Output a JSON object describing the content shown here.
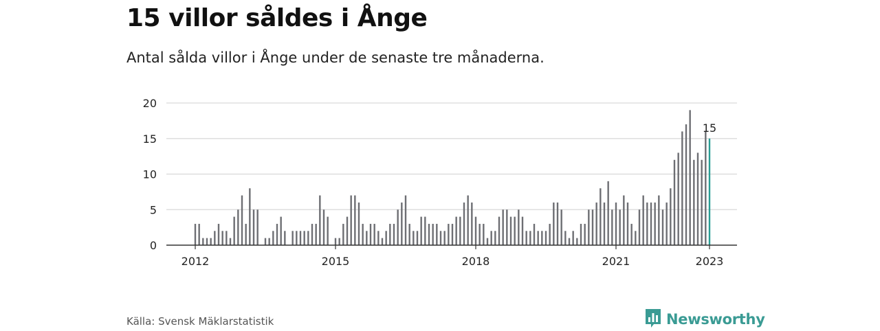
{
  "header": {
    "title": "15 villor såldes i Ånge",
    "subtitle": "Antal sålda villor i Ånge under de senaste tre månaderna."
  },
  "footer": {
    "source": "Källa: Svensk Mäklarstatistik",
    "brand": "Newsworthy",
    "brand_icon": "bar-chart-logo-icon"
  },
  "colors": {
    "bar": "#6d6e73",
    "highlight": "#2a9d94",
    "grid": "#d9d9d9",
    "axis": "#333333",
    "brand": "#3a9b94"
  },
  "chart_data": {
    "type": "bar",
    "title": "15 villor såldes i Ånge",
    "subtitle": "Antal sålda villor i Ånge under de senaste tre månaderna.",
    "xlabel": "",
    "ylabel": "",
    "ylim": [
      0,
      20
    ],
    "yticks": [
      0,
      5,
      10,
      15,
      20
    ],
    "xticks": [
      "2012",
      "2015",
      "2018",
      "2021",
      "2023"
    ],
    "x_start": "2012-01",
    "x_end": "2023-01",
    "grid": true,
    "highlight_label": "15",
    "values": [
      3,
      3,
      1,
      1,
      1,
      2,
      3,
      2,
      2,
      1,
      4,
      5,
      7,
      3,
      8,
      5,
      5,
      0,
      1,
      1,
      2,
      3,
      4,
      2,
      0,
      2,
      2,
      2,
      2,
      2,
      3,
      3,
      7,
      5,
      4,
      0,
      1,
      1,
      3,
      4,
      7,
      7,
      6,
      3,
      2,
      3,
      3,
      2,
      1,
      2,
      3,
      3,
      5,
      6,
      7,
      3,
      2,
      2,
      4,
      4,
      3,
      3,
      3,
      2,
      2,
      3,
      3,
      4,
      4,
      6,
      7,
      6,
      4,
      3,
      3,
      1,
      2,
      2,
      4,
      5,
      5,
      4,
      4,
      5,
      4,
      2,
      2,
      3,
      2,
      2,
      2,
      3,
      6,
      6,
      5,
      2,
      1,
      2,
      1,
      3,
      3,
      5,
      5,
      6,
      8,
      6,
      9,
      5,
      6,
      5,
      7,
      6,
      3,
      2,
      5,
      7,
      6,
      6,
      6,
      7,
      5,
      6,
      8,
      12,
      13,
      16,
      17,
      19,
      12,
      13,
      12,
      16,
      15
    ]
  }
}
